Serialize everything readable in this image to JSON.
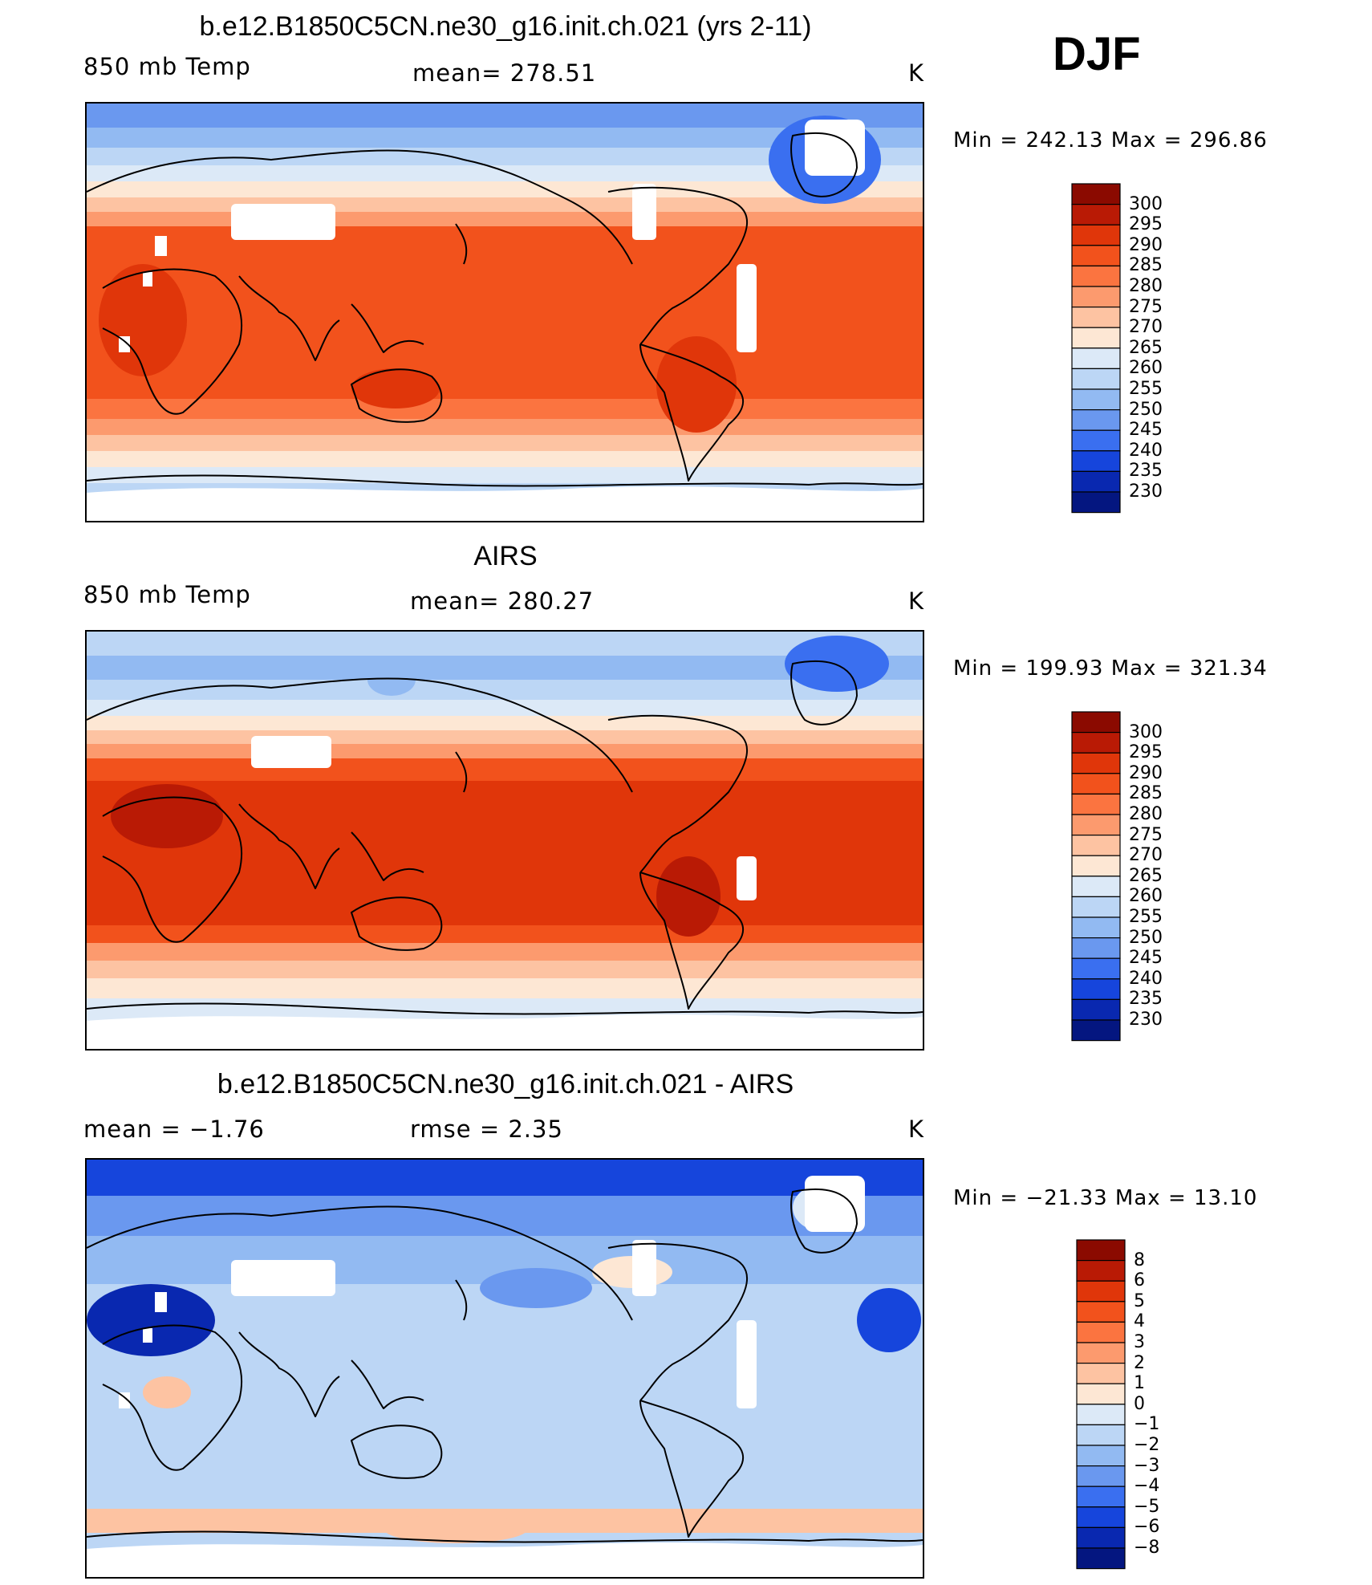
{
  "season": "DJF",
  "panels": [
    {
      "title": "b.e12.B1850C5CN.ne30_g16.init.ch.021 (yrs 2-11)",
      "left_label": "850 mb Temp",
      "center_label": "mean=  278.51",
      "units": "K",
      "minmax": "Min  =  242.13  Max  =  296.86",
      "colorbar": {
        "labels": [
          "300",
          "295",
          "290",
          "285",
          "280",
          "275",
          "270",
          "265",
          "260",
          "255",
          "250",
          "245",
          "240",
          "235",
          "230"
        ],
        "colors": [
          "#8b0a00",
          "#b91a05",
          "#e0360a",
          "#f2521c",
          "#fb7440",
          "#fc9a6e",
          "#fdc3a2",
          "#fde7d4",
          "#dce9f7",
          "#bcd6f5",
          "#92baf2",
          "#6a98ef",
          "#3a6ff0",
          "#1645dc",
          "#0928b0",
          "#041680"
        ]
      },
      "map_style": "model"
    },
    {
      "title": "AIRS",
      "left_label": "850 mb Temp",
      "center_label": "mean=  280.27",
      "units": "K",
      "minmax": "Min  =  199.93  Max  =  321.34",
      "colorbar": {
        "labels": [
          "300",
          "295",
          "290",
          "285",
          "280",
          "275",
          "270",
          "265",
          "260",
          "255",
          "250",
          "245",
          "240",
          "235",
          "230"
        ],
        "colors": [
          "#8b0a00",
          "#b91a05",
          "#e0360a",
          "#f2521c",
          "#fb7440",
          "#fc9a6e",
          "#fdc3a2",
          "#fde7d4",
          "#dce9f7",
          "#bcd6f5",
          "#92baf2",
          "#6a98ef",
          "#3a6ff0",
          "#1645dc",
          "#0928b0",
          "#041680"
        ]
      },
      "map_style": "obs"
    },
    {
      "title": "b.e12.B1850C5CN.ne30_g16.init.ch.021 - AIRS",
      "left_label": "mean =    −1.76",
      "center_label": "rmse =     2.35",
      "units": "K",
      "minmax": "Min  =  −21.33  Max  =    13.10",
      "colorbar": {
        "labels": [
          "8",
          "6",
          "5",
          "4",
          "3",
          "2",
          "1",
          "0",
          "−1",
          "−2",
          "−3",
          "−4",
          "−5",
          "−6",
          "−8"
        ],
        "colors": [
          "#8b0a00",
          "#b91a05",
          "#e0360a",
          "#f2521c",
          "#fb7440",
          "#fc9a6e",
          "#fdc3a2",
          "#fde7d4",
          "#dce9f7",
          "#bcd6f5",
          "#92baf2",
          "#6a98ef",
          "#3a6ff0",
          "#1645dc",
          "#0928b0",
          "#041680"
        ]
      },
      "map_style": "diff"
    }
  ]
}
